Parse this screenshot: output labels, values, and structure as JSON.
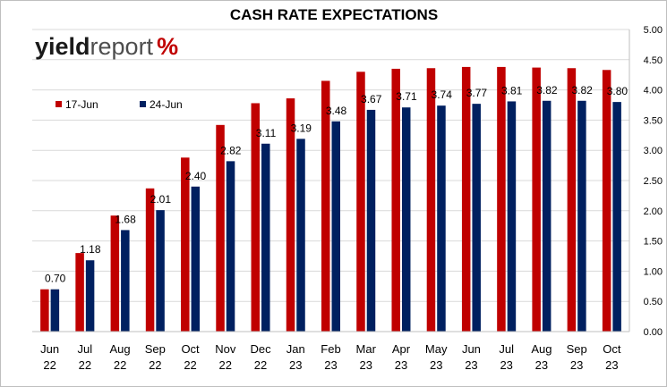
{
  "chart_data": {
    "type": "bar",
    "title": "CASH RATE EXPECTATIONS",
    "categories": [
      [
        "Jun",
        "22"
      ],
      [
        "Jul",
        "22"
      ],
      [
        "Aug",
        "22"
      ],
      [
        "Sep",
        "22"
      ],
      [
        "Oct",
        "22"
      ],
      [
        "Nov",
        "22"
      ],
      [
        "Dec",
        "22"
      ],
      [
        "Jan",
        "23"
      ],
      [
        "Feb",
        "23"
      ],
      [
        "Mar",
        "23"
      ],
      [
        "Apr",
        "23"
      ],
      [
        "May",
        "23"
      ],
      [
        "Jun",
        "23"
      ],
      [
        "Jul",
        "23"
      ],
      [
        "Aug",
        "23"
      ],
      [
        "Sep",
        "23"
      ],
      [
        "Oct",
        "23"
      ]
    ],
    "series": [
      {
        "name": "17-Jun",
        "color": "#c00000",
        "values": [
          0.7,
          1.3,
          1.92,
          2.37,
          2.88,
          3.42,
          3.78,
          3.86,
          4.15,
          4.3,
          4.35,
          4.36,
          4.38,
          4.38,
          4.37,
          4.36,
          4.33
        ],
        "labels_shown": false
      },
      {
        "name": "24-Jun",
        "color": "#002060",
        "values": [
          0.7,
          1.18,
          1.68,
          2.01,
          2.4,
          2.82,
          3.11,
          3.19,
          3.48,
          3.67,
          3.71,
          3.74,
          3.77,
          3.81,
          3.82,
          3.82,
          3.8
        ],
        "labels": [
          "0.70",
          "1.18",
          "1.68",
          "2.01",
          "2.40",
          "2.82",
          "3.11",
          "3.19",
          "3.48",
          "3.67",
          "3.71",
          "3.74",
          "3.77",
          "3.81",
          "3.82",
          "3.82",
          "3.80"
        ],
        "labels_shown": true
      }
    ],
    "y_axis": {
      "position": "right",
      "ylim": [
        0,
        5
      ],
      "ticks": [
        "0.00",
        "0.50",
        "1.00",
        "1.50",
        "2.00",
        "2.50",
        "3.00",
        "3.50",
        "4.00",
        "4.50",
        "5.00"
      ]
    },
    "grid": true,
    "legend_placement": "top-left"
  },
  "logo": {
    "part1": "yield",
    "part2": "report",
    "part3": "%"
  }
}
